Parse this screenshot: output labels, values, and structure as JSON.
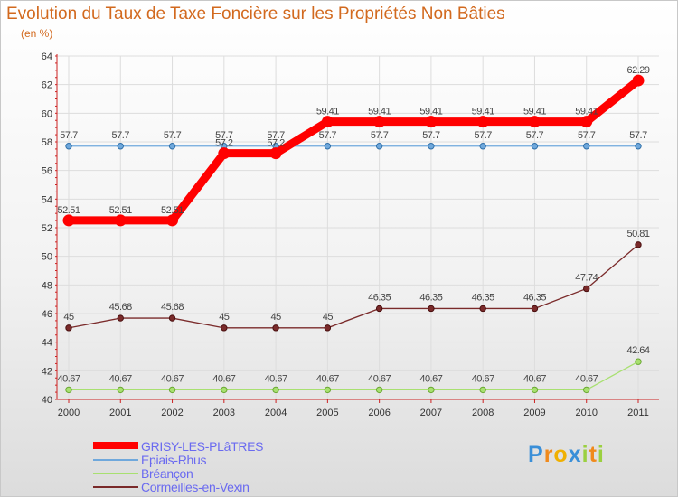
{
  "title": "Evolution du Taux de Taxe Foncière sur les Propriétés Non Bâties",
  "unit_label": "(en %)",
  "chart_data": {
    "type": "line",
    "title": "Evolution du Taux de Taxe Foncière sur les Propriétés Non Bâties",
    "ylabel": "(en %)",
    "xlabel": "",
    "ylim": [
      40,
      64
    ],
    "yticks": [
      "40",
      "42",
      "44",
      "46",
      "48",
      "50",
      "52",
      "54",
      "56",
      "58",
      "60",
      "62",
      "64"
    ],
    "categories": [
      "2000",
      "2001",
      "2002",
      "2003",
      "2004",
      "2005",
      "2006",
      "2007",
      "2008",
      "2009",
      "2010",
      "2011"
    ],
    "grid": true,
    "series": [
      {
        "name": "GRISY-LES-PLâTRES",
        "color": "#ff0000",
        "values": [
          52.51,
          52.51,
          52.51,
          57.2,
          57.2,
          59.41,
          59.41,
          59.41,
          59.41,
          59.41,
          59.41,
          62.29
        ],
        "labels": [
          "52.51",
          "52.51",
          "52.51",
          "57.2",
          "57.2",
          "59.41",
          "59.41",
          "59.41",
          "59.41",
          "59.41",
          "59.41",
          "62.29"
        ]
      },
      {
        "name": "Epiais-Rhus",
        "color": "#6fa8dc",
        "values": [
          57.7,
          57.7,
          57.7,
          57.7,
          57.7,
          57.7,
          57.7,
          57.7,
          57.7,
          57.7,
          57.7,
          57.7
        ],
        "labels": [
          "57.7",
          "57.7",
          "57.7",
          "57.7",
          "57.7",
          "57.7",
          "57.7",
          "57.7",
          "57.7",
          "57.7",
          "57.7",
          "57.7"
        ]
      },
      {
        "name": "Bréançon",
        "color": "#a8e070",
        "values": [
          40.67,
          40.67,
          40.67,
          40.67,
          40.67,
          40.67,
          40.67,
          40.67,
          40.67,
          40.67,
          40.67,
          42.64
        ],
        "labels": [
          "40.67",
          "40.67",
          "40.67",
          "40.67",
          "40.67",
          "40.67",
          "40.67",
          "40.67",
          "40.67",
          "40.67",
          "40.67",
          "42.64"
        ]
      },
      {
        "name": "Cormeilles-en-Vexin",
        "color": "#7a2a2a",
        "values": [
          45,
          45.68,
          45.68,
          45,
          45,
          45,
          46.35,
          46.35,
          46.35,
          46.35,
          47.74,
          50.81
        ],
        "labels": [
          "45",
          "45.68",
          "45.68",
          "45",
          "45",
          "45",
          "46.35",
          "46.35",
          "46.35",
          "46.35",
          "47.74",
          "50.81"
        ]
      }
    ]
  },
  "legend": [
    {
      "label": "GRISY-LES-PLâTRES",
      "color": "#ff0000"
    },
    {
      "label": "Epiais-Rhus",
      "color": "#6fa8dc"
    },
    {
      "label": "Bréançon",
      "color": "#a8e070"
    },
    {
      "label": "Cormeilles-en-Vexin",
      "color": "#7a2a2a"
    }
  ],
  "logo": {
    "letters": [
      "P",
      "r",
      "o",
      "x",
      "i",
      "t",
      "i"
    ],
    "colors": [
      "#3a8fd8",
      "#f08a1c",
      "#f0b000",
      "#3a8fd8",
      "#9bd040",
      "#f08a1c",
      "#9bd040"
    ]
  }
}
